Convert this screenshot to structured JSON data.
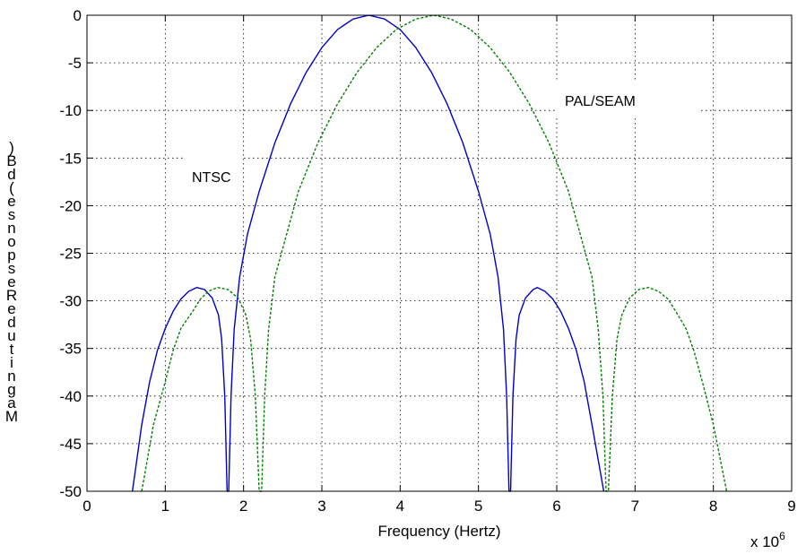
{
  "chart_data": {
    "type": "line",
    "title": "",
    "xlabel": "Frequency (Hertz)",
    "ylabel": "Magnitude Response (dB)",
    "xlim": [
      0,
      9
    ],
    "ylim": [
      -50,
      0
    ],
    "x_ticks": [
      "0",
      "1",
      "2",
      "3",
      "4",
      "5",
      "6",
      "7",
      "8",
      "9"
    ],
    "y_ticks": [
      "0",
      "-5",
      "-10",
      "-15",
      "-20",
      "-25",
      "-30",
      "-35",
      "-40",
      "-45",
      "-50"
    ],
    "x_multiplier": {
      "base": "x 10",
      "exponent": "6"
    },
    "grid": true,
    "annotations": [
      {
        "text": "NTSC"
      },
      {
        "text": "PAL/SEAM"
      }
    ],
    "series": [
      {
        "color": "#0000cc",
        "style": "solid",
        "points": [
          [
            0.58,
            -50
          ],
          [
            0.7,
            -43
          ],
          [
            0.8,
            -38.5
          ],
          [
            0.9,
            -35.2
          ],
          [
            1.0,
            -32.9
          ],
          [
            1.1,
            -31.1
          ],
          [
            1.2,
            -29.8
          ],
          [
            1.3,
            -29.0
          ],
          [
            1.4,
            -28.6
          ],
          [
            1.5,
            -28.8
          ],
          [
            1.6,
            -29.7
          ],
          [
            1.68,
            -31.5
          ],
          [
            1.72,
            -34
          ],
          [
            1.76,
            -40
          ],
          [
            1.79,
            -50
          ],
          [
            1.81,
            -50
          ],
          [
            1.84,
            -40
          ],
          [
            1.88,
            -33
          ],
          [
            1.95,
            -27.5
          ],
          [
            2.05,
            -23
          ],
          [
            2.2,
            -18.5
          ],
          [
            2.4,
            -13.4
          ],
          [
            2.6,
            -9.3
          ],
          [
            2.8,
            -6.0
          ],
          [
            3.0,
            -3.4
          ],
          [
            3.2,
            -1.5
          ],
          [
            3.4,
            -0.4
          ],
          [
            3.6,
            0
          ],
          [
            3.8,
            -0.4
          ],
          [
            4.0,
            -1.5
          ],
          [
            4.2,
            -3.4
          ],
          [
            4.4,
            -6.0
          ],
          [
            4.6,
            -9.3
          ],
          [
            4.8,
            -13.4
          ],
          [
            5.0,
            -18.5
          ],
          [
            5.15,
            -23
          ],
          [
            5.25,
            -27.5
          ],
          [
            5.32,
            -33
          ],
          [
            5.36,
            -40
          ],
          [
            5.39,
            -50
          ],
          [
            5.41,
            -50
          ],
          [
            5.44,
            -40
          ],
          [
            5.48,
            -34
          ],
          [
            5.52,
            -31.5
          ],
          [
            5.6,
            -29.7
          ],
          [
            5.7,
            -28.8
          ],
          [
            5.75,
            -28.6
          ],
          [
            5.85,
            -29.0
          ],
          [
            5.95,
            -29.8
          ],
          [
            6.05,
            -31.1
          ],
          [
            6.15,
            -32.9
          ],
          [
            6.25,
            -35.2
          ],
          [
            6.35,
            -38.5
          ],
          [
            6.45,
            -43
          ],
          [
            6.6,
            -50
          ]
        ]
      },
      {
        "color": "#007f00",
        "style": "dashed",
        "points": [
          [
            0.7,
            -50
          ],
          [
            0.85,
            -43
          ],
          [
            1.0,
            -38.5
          ],
          [
            1.1,
            -35.2
          ],
          [
            1.2,
            -32.9
          ],
          [
            1.35,
            -31.1
          ],
          [
            1.45,
            -29.8
          ],
          [
            1.55,
            -29.0
          ],
          [
            1.67,
            -28.6
          ],
          [
            1.8,
            -28.8
          ],
          [
            1.93,
            -29.7
          ],
          [
            2.03,
            -31.5
          ],
          [
            2.09,
            -34
          ],
          [
            2.15,
            -40
          ],
          [
            2.2,
            -50
          ],
          [
            2.23,
            -50
          ],
          [
            2.27,
            -40
          ],
          [
            2.32,
            -33
          ],
          [
            2.4,
            -27.5
          ],
          [
            2.55,
            -23
          ],
          [
            2.7,
            -18.5
          ],
          [
            2.95,
            -13.4
          ],
          [
            3.2,
            -9.3
          ],
          [
            3.45,
            -6.0
          ],
          [
            3.7,
            -3.4
          ],
          [
            3.95,
            -1.5
          ],
          [
            4.2,
            -0.4
          ],
          [
            4.43,
            0
          ],
          [
            4.65,
            -0.4
          ],
          [
            4.9,
            -1.5
          ],
          [
            5.15,
            -3.4
          ],
          [
            5.4,
            -6.0
          ],
          [
            5.65,
            -9.3
          ],
          [
            5.9,
            -13.4
          ],
          [
            6.15,
            -18.5
          ],
          [
            6.3,
            -23
          ],
          [
            6.45,
            -27.5
          ],
          [
            6.53,
            -33
          ],
          [
            6.59,
            -40
          ],
          [
            6.63,
            -50
          ],
          [
            6.66,
            -50
          ],
          [
            6.71,
            -40
          ],
          [
            6.77,
            -34
          ],
          [
            6.83,
            -31.5
          ],
          [
            6.93,
            -29.7
          ],
          [
            7.05,
            -28.8
          ],
          [
            7.17,
            -28.6
          ],
          [
            7.3,
            -29.0
          ],
          [
            7.42,
            -29.8
          ],
          [
            7.52,
            -31.1
          ],
          [
            7.65,
            -32.9
          ],
          [
            7.75,
            -35.2
          ],
          [
            7.86,
            -38.5
          ],
          [
            8.0,
            -43
          ],
          [
            8.17,
            -50
          ]
        ]
      }
    ]
  }
}
